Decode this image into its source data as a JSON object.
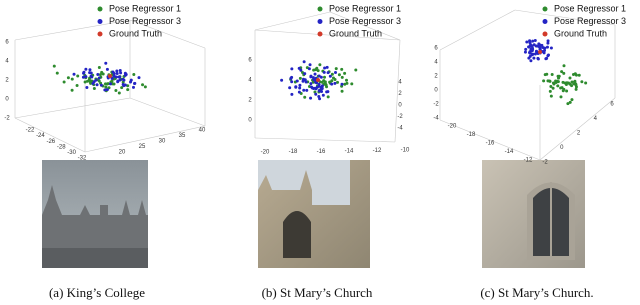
{
  "panels": [
    {
      "legend": [
        {
          "name": "Pose Regressor 1",
          "color": "#2e8b2e"
        },
        {
          "name": "Pose Regressor 3",
          "color": "#2424c4"
        },
        {
          "name": "Ground Truth",
          "color": "#d23a2a"
        }
      ],
      "axis_ticks": [
        [
          -32,
          -30,
          -28,
          -26,
          -24,
          -22
        ],
        [
          20,
          25,
          30,
          35,
          40
        ],
        [
          -2,
          0,
          2,
          4,
          6
        ]
      ],
      "caption": "(a) King’s College"
    },
    {
      "legend": [
        {
          "name": "Pose Regressor 1",
          "color": "#2e8b2e"
        },
        {
          "name": "Pose Regressor 3",
          "color": "#2424c4"
        },
        {
          "name": "Ground Truth",
          "color": "#d23a2a"
        }
      ],
      "axis_ticks": [
        [
          -20,
          -18,
          -16,
          -14,
          -12,
          -10
        ],
        [
          -4,
          -2,
          0,
          2,
          4
        ],
        [
          0,
          2,
          4,
          6
        ]
      ],
      "caption": "(b) St Mary’s Church"
    },
    {
      "legend": [
        {
          "name": "Pose Regressor 1",
          "color": "#2e8b2e"
        },
        {
          "name": "Pose Regressor 3",
          "color": "#2424c4"
        },
        {
          "name": "Ground Truth",
          "color": "#d23a2a"
        }
      ],
      "axis_ticks": [
        [
          -4,
          -2,
          0,
          2,
          4,
          6
        ],
        [
          -20,
          -18,
          -16,
          -14,
          -12
        ],
        [
          -2,
          0,
          2,
          4,
          6
        ]
      ],
      "caption": "(c) St Mary’s Church."
    }
  ]
}
